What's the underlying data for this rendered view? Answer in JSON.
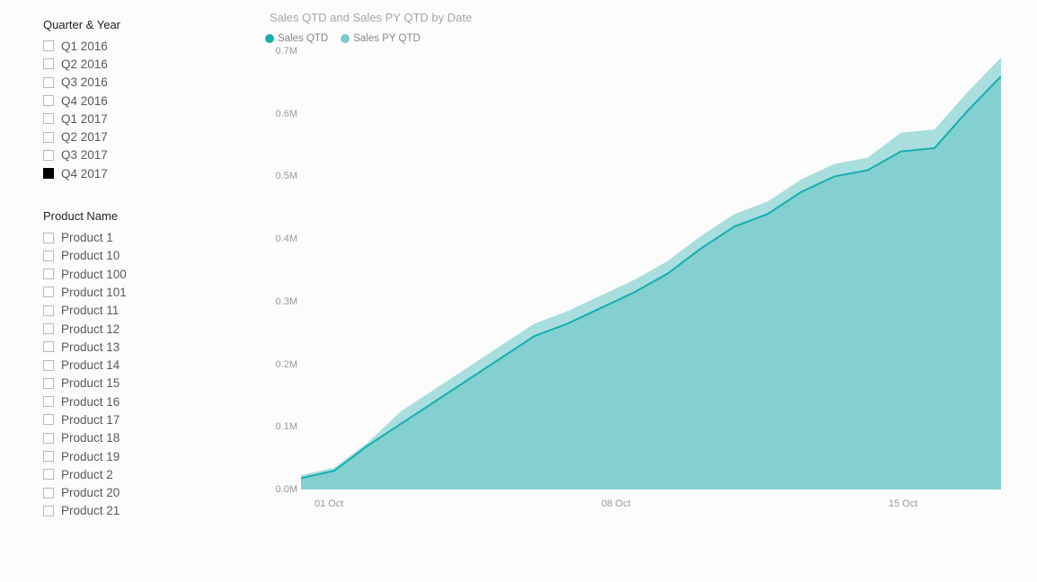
{
  "background_color": "#fdfcfc",
  "slicers": {
    "quarter": {
      "title": "Quarter & Year",
      "items": [
        {
          "label": "Q1 2016",
          "checked": false
        },
        {
          "label": "Q2 2016",
          "checked": false
        },
        {
          "label": "Q3 2016",
          "checked": false
        },
        {
          "label": "Q4 2016",
          "checked": false
        },
        {
          "label": "Q1 2017",
          "checked": false
        },
        {
          "label": "Q2 2017",
          "checked": false
        },
        {
          "label": "Q3 2017",
          "checked": false
        },
        {
          "label": "Q4 2017",
          "checked": true
        }
      ]
    },
    "product": {
      "title": "Product Name",
      "items": [
        {
          "label": "Product 1",
          "checked": false
        },
        {
          "label": "Product 10",
          "checked": false
        },
        {
          "label": "Product 100",
          "checked": false
        },
        {
          "label": "Product 101",
          "checked": false
        },
        {
          "label": "Product 11",
          "checked": false
        },
        {
          "label": "Product 12",
          "checked": false
        },
        {
          "label": "Product 13",
          "checked": false
        },
        {
          "label": "Product 14",
          "checked": false
        },
        {
          "label": "Product 15",
          "checked": false
        },
        {
          "label": "Product 16",
          "checked": false
        },
        {
          "label": "Product 17",
          "checked": false
        },
        {
          "label": "Product 18",
          "checked": false
        },
        {
          "label": "Product 19",
          "checked": false
        },
        {
          "label": "Product 2",
          "checked": false
        },
        {
          "label": "Product 20",
          "checked": false
        },
        {
          "label": "Product 21",
          "checked": false
        }
      ]
    }
  },
  "chart": {
    "type": "area",
    "title": "Sales QTD and Sales PY QTD by Date",
    "title_color": "#a6a6a6",
    "title_fontsize": 13,
    "legend": [
      {
        "label": "Sales QTD",
        "color": "#13afb0"
      },
      {
        "label": "Sales PY QTD",
        "color": "#7accce"
      }
    ],
    "y_axis": {
      "min": 0,
      "max": 0.7,
      "tick_step": 0.1,
      "tick_labels": [
        "0.0M",
        "0.1M",
        "0.2M",
        "0.3M",
        "0.4M",
        "0.5M",
        "0.6M",
        "0.7M"
      ],
      "label_color": "#999",
      "label_fontsize": 11
    },
    "x_axis": {
      "tick_labels": [
        "01 Oct",
        "08 Oct",
        "15 Oct"
      ],
      "tick_positions_pct": [
        4,
        45,
        86
      ],
      "label_color": "#999",
      "label_fontsize": 11
    },
    "series": [
      {
        "name": "Sales QTD",
        "stroke": "#13afb0",
        "fill": "#8cd2d3",
        "fill_opacity": 1.0,
        "stroke_width": 2,
        "x": [
          0,
          1,
          2,
          3,
          4,
          5,
          6,
          7,
          8,
          9,
          10,
          11,
          12,
          13,
          14,
          15,
          16,
          17,
          18,
          19
        ],
        "y": [
          0.018,
          0.03,
          0.07,
          0.105,
          0.14,
          0.175,
          0.21,
          0.245,
          0.265,
          0.29,
          0.315,
          0.345,
          0.385,
          0.42,
          0.44,
          0.475,
          0.5,
          0.51,
          0.54,
          0.545
        ]
      },
      {
        "name": "Sales QTD ext",
        "stroke": "#13afb0",
        "fill": "#8cd2d3",
        "fill_opacity": 1.0,
        "stroke_width": 2,
        "x": [
          19,
          20,
          21
        ],
        "y": [
          0.545,
          0.605,
          0.66
        ]
      },
      {
        "name": "Sales PY QTD",
        "stroke": "none",
        "fill": "#a6dcdd",
        "fill_opacity": 0.85,
        "stroke_width": 0,
        "x": [
          0,
          1,
          2,
          3,
          4,
          5,
          6,
          7,
          8,
          9,
          10,
          11,
          12,
          13,
          14,
          15,
          16,
          17,
          18,
          19,
          20,
          21
        ],
        "y": [
          0.01,
          0.02,
          0.05,
          0.07,
          0.1,
          0.135,
          0.17,
          0.21,
          0.24,
          0.245,
          0.28,
          0.31,
          0.32,
          0.375,
          0.405,
          0.44,
          0.47,
          0.475,
          0.5,
          0.53,
          0.56,
          0.63
        ]
      }
    ],
    "x_domain": [
      0,
      21
    ],
    "plot_background": "#ffffff00"
  }
}
